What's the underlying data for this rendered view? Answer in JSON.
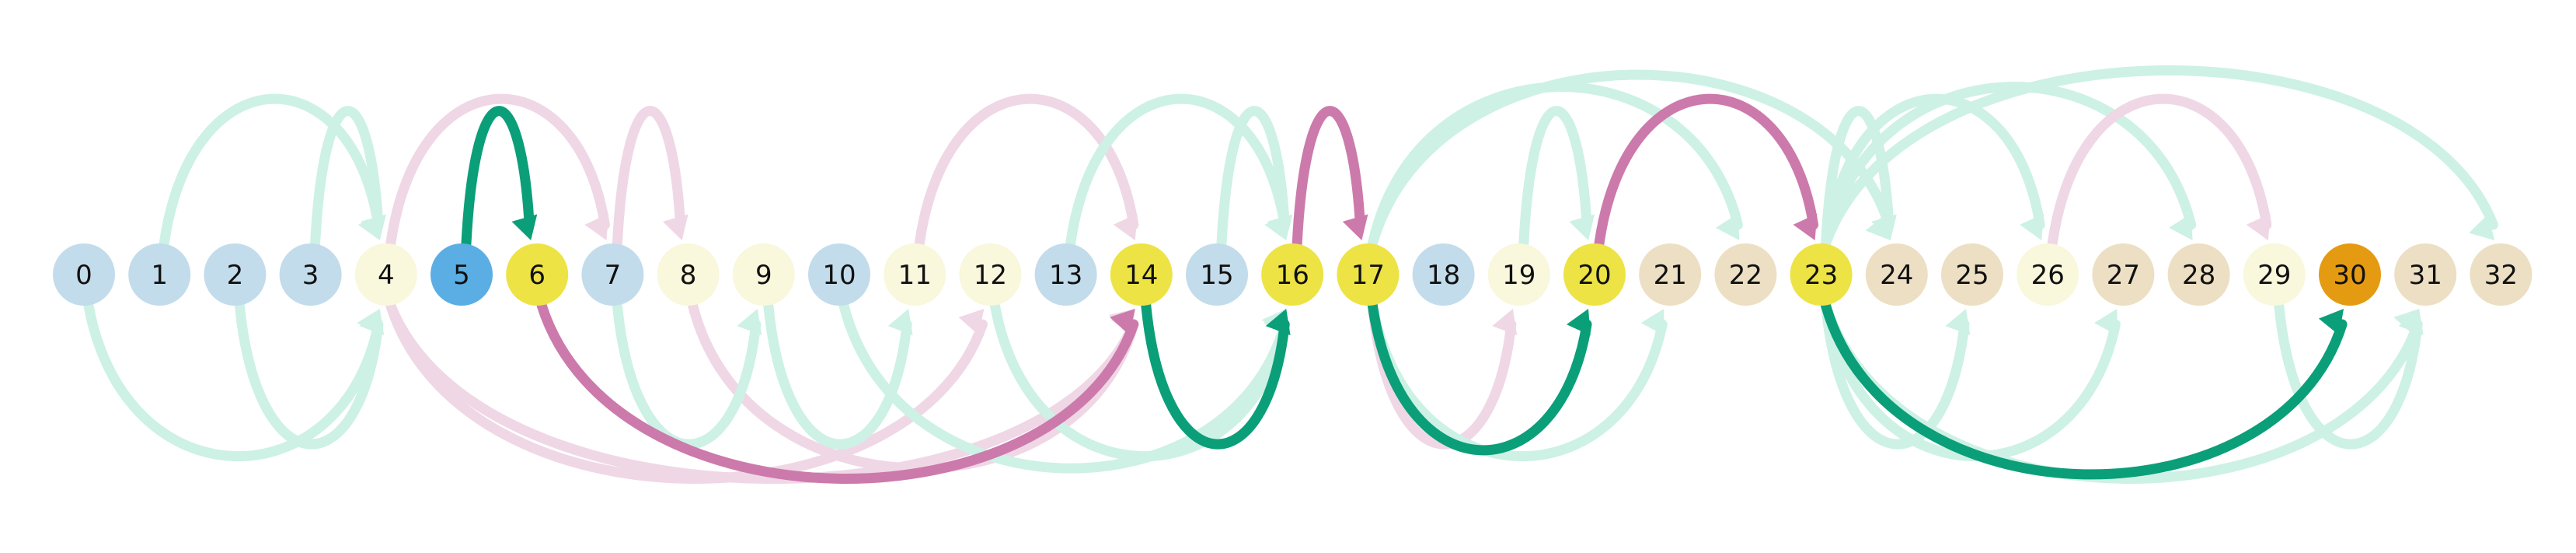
{
  "colors": {
    "node_light_blue": "#c3dceb",
    "node_blue": "#5aaee4",
    "node_cream": "#f9f7dc",
    "node_yellow": "#ede345",
    "node_tan": "#ecdfc3",
    "node_orange": "#e49b12",
    "arc_green_faint": "#cdf1e5",
    "arc_pink_faint": "#efd7e5",
    "arc_green_strong": "#0a9f78",
    "arc_pink_strong": "#cc7aab",
    "label": "#111111"
  },
  "nodes": [
    {
      "id": 0,
      "label": "0",
      "color": "light_blue"
    },
    {
      "id": 1,
      "label": "1",
      "color": "light_blue"
    },
    {
      "id": 2,
      "label": "2",
      "color": "light_blue"
    },
    {
      "id": 3,
      "label": "3",
      "color": "light_blue"
    },
    {
      "id": 4,
      "label": "4",
      "color": "cream"
    },
    {
      "id": 5,
      "label": "5",
      "color": "blue"
    },
    {
      "id": 6,
      "label": "6",
      "color": "yellow"
    },
    {
      "id": 7,
      "label": "7",
      "color": "light_blue"
    },
    {
      "id": 8,
      "label": "8",
      "color": "cream"
    },
    {
      "id": 9,
      "label": "9",
      "color": "cream"
    },
    {
      "id": 10,
      "label": "10",
      "color": "light_blue"
    },
    {
      "id": 11,
      "label": "11",
      "color": "cream"
    },
    {
      "id": 12,
      "label": "12",
      "color": "cream"
    },
    {
      "id": 13,
      "label": "13",
      "color": "light_blue"
    },
    {
      "id": 14,
      "label": "14",
      "color": "yellow"
    },
    {
      "id": 15,
      "label": "15",
      "color": "light_blue"
    },
    {
      "id": 16,
      "label": "16",
      "color": "yellow"
    },
    {
      "id": 17,
      "label": "17",
      "color": "yellow"
    },
    {
      "id": 18,
      "label": "18",
      "color": "light_blue"
    },
    {
      "id": 19,
      "label": "19",
      "color": "cream"
    },
    {
      "id": 20,
      "label": "20",
      "color": "yellow"
    },
    {
      "id": 21,
      "label": "21",
      "color": "tan"
    },
    {
      "id": 22,
      "label": "22",
      "color": "tan"
    },
    {
      "id": 23,
      "label": "23",
      "color": "yellow"
    },
    {
      "id": 24,
      "label": "24",
      "color": "tan"
    },
    {
      "id": 25,
      "label": "25",
      "color": "tan"
    },
    {
      "id": 26,
      "label": "26",
      "color": "cream"
    },
    {
      "id": 27,
      "label": "27",
      "color": "tan"
    },
    {
      "id": 28,
      "label": "28",
      "color": "tan"
    },
    {
      "id": 29,
      "label": "29",
      "color": "cream"
    },
    {
      "id": 30,
      "label": "30",
      "color": "orange"
    },
    {
      "id": 31,
      "label": "31",
      "color": "tan"
    },
    {
      "id": 32,
      "label": "32",
      "color": "tan"
    }
  ],
  "edges": [
    {
      "from": 1,
      "to": 4,
      "style": "green_faint"
    },
    {
      "from": 3,
      "to": 4,
      "style": "green_faint"
    },
    {
      "from": 0,
      "to": 4,
      "style": "green_faint"
    },
    {
      "from": 2,
      "to": 4,
      "style": "green_faint"
    },
    {
      "from": 4,
      "to": 14,
      "style": "pink_faint"
    },
    {
      "from": 4,
      "to": 12,
      "style": "pink_faint"
    },
    {
      "from": 4,
      "to": 7,
      "style": "pink_faint"
    },
    {
      "from": 8,
      "to": 14,
      "style": "pink_faint"
    },
    {
      "from": 9,
      "to": 11,
      "style": "green_faint"
    },
    {
      "from": 10,
      "to": 16,
      "style": "green_faint"
    },
    {
      "from": 7,
      "to": 9,
      "style": "green_faint"
    },
    {
      "from": 7,
      "to": 8,
      "style": "pink_faint"
    },
    {
      "from": 11,
      "to": 14,
      "style": "pink_faint"
    },
    {
      "from": 12,
      "to": 16,
      "style": "green_faint"
    },
    {
      "from": 13,
      "to": 16,
      "style": "green_faint"
    },
    {
      "from": 15,
      "to": 16,
      "style": "green_faint"
    },
    {
      "from": 14,
      "to": 16,
      "style": "green_faint"
    },
    {
      "from": 17,
      "to": 19,
      "style": "pink_faint"
    },
    {
      "from": 17,
      "to": 22,
      "style": "green_faint"
    },
    {
      "from": 17,
      "to": 21,
      "style": "green_faint"
    },
    {
      "from": 17,
      "to": 24,
      "style": "green_faint"
    },
    {
      "from": 19,
      "to": 20,
      "style": "green_faint"
    },
    {
      "from": 23,
      "to": 24,
      "style": "green_faint"
    },
    {
      "from": 23,
      "to": 25,
      "style": "green_faint"
    },
    {
      "from": 23,
      "to": 28,
      "style": "green_faint"
    },
    {
      "from": 23,
      "to": 26,
      "style": "green_faint"
    },
    {
      "from": 23,
      "to": 27,
      "style": "green_faint"
    },
    {
      "from": 23,
      "to": 31,
      "style": "green_faint"
    },
    {
      "from": 23,
      "to": 32,
      "style": "green_faint"
    },
    {
      "from": 26,
      "to": 29,
      "style": "pink_faint"
    },
    {
      "from": 29,
      "to": 31,
      "style": "green_faint"
    },
    {
      "from": 5,
      "to": 6,
      "style": "green_strong"
    },
    {
      "from": 6,
      "to": 14,
      "style": "pink_strong"
    },
    {
      "from": 14,
      "to": 16,
      "style": "green_strong"
    },
    {
      "from": 16,
      "to": 17,
      "style": "pink_strong"
    },
    {
      "from": 17,
      "to": 20,
      "style": "green_strong"
    },
    {
      "from": 20,
      "to": 23,
      "style": "pink_strong"
    },
    {
      "from": 23,
      "to": 30,
      "style": "green_strong"
    }
  ]
}
